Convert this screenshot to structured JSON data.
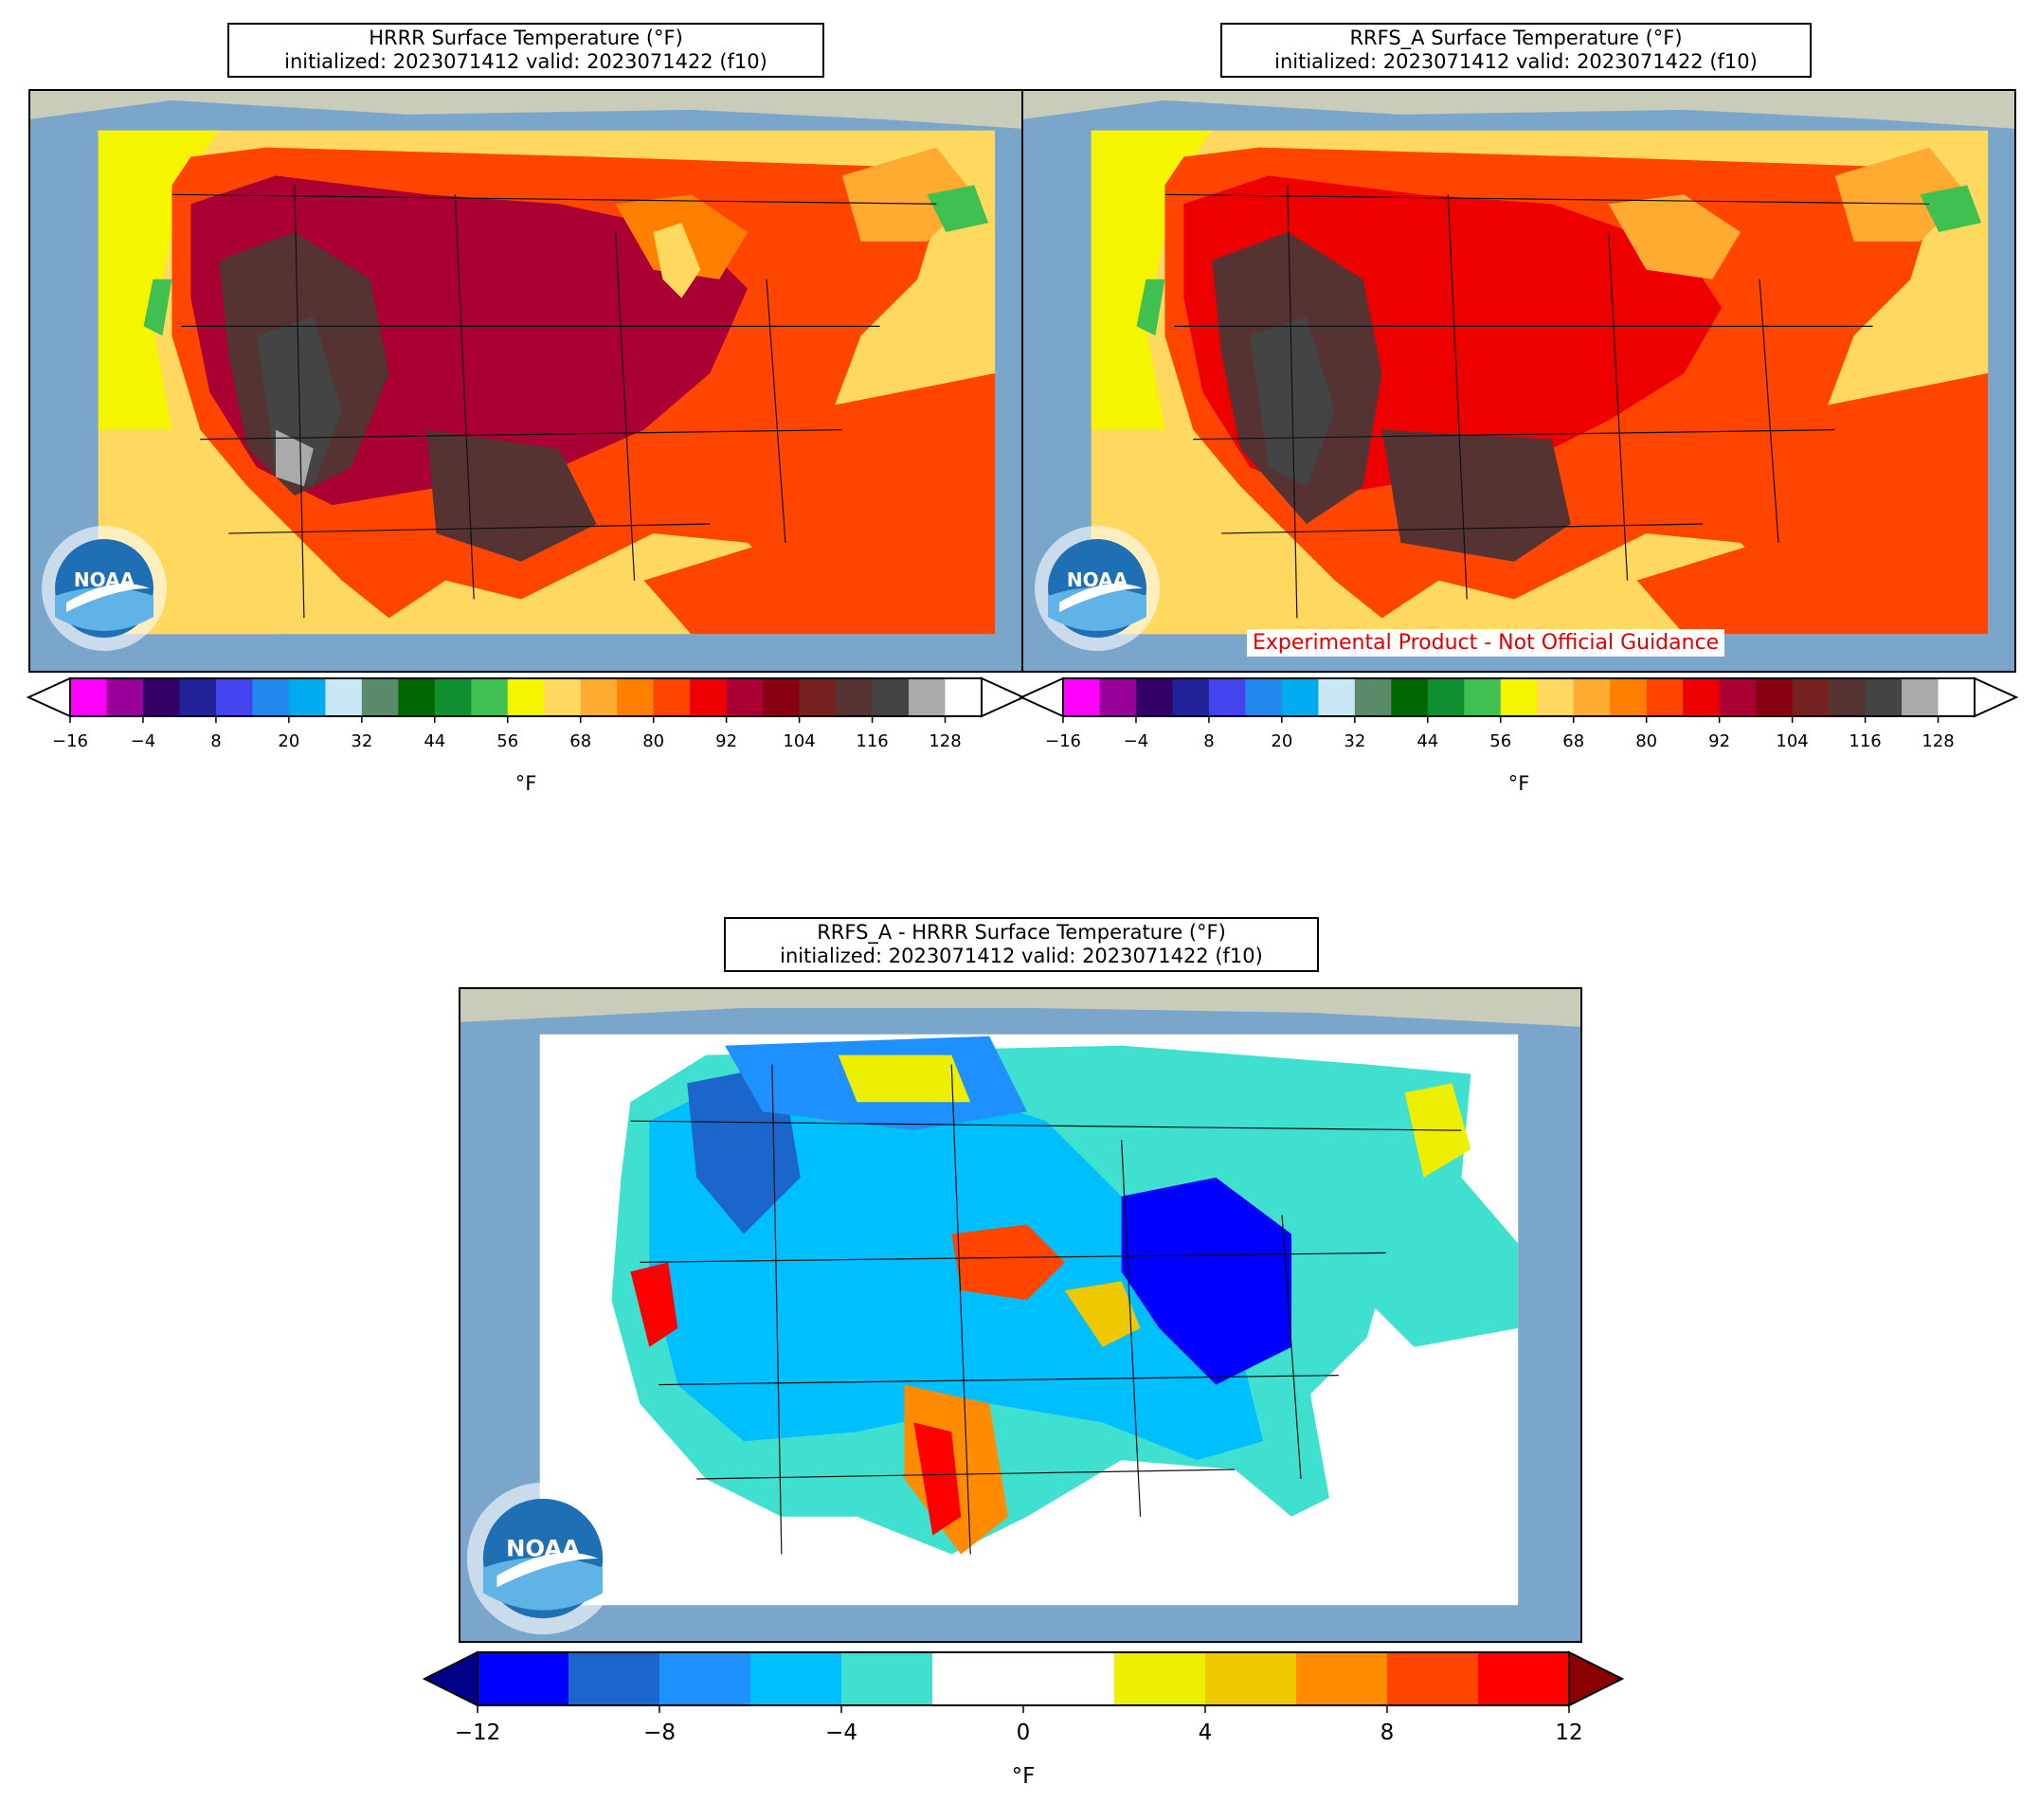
{
  "panels": [
    {
      "title_line1": "HRRR Surface Temperature (°F)",
      "title_line2": "initialized: 2023071412 valid: 2023071422 (f10)"
    },
    {
      "title_line1": "RRFS_A Surface Temperature (°F)",
      "title_line2": "initialized: 2023071412 valid: 2023071422 (f10)",
      "disclaimer": "Experimental Product - Not Official Guidance"
    },
    {
      "title_line1": "RRFS_A - HRRR Surface Temperature (°F)",
      "title_line2": "initialized: 2023071412 valid: 2023071422 (f10)"
    }
  ],
  "temp_colorbar": {
    "unit": "°F",
    "ticks": [
      "−16",
      "−4",
      "8",
      "20",
      "32",
      "44",
      "56",
      "68",
      "80",
      "92",
      "104",
      "116",
      "128"
    ],
    "colors": [
      "#ff00ff",
      "#990099",
      "#330066",
      "#222299",
      "#4444ee",
      "#2288ee",
      "#00aaee",
      "#c8e6f6",
      "#5a8a6a",
      "#006600",
      "#109030",
      "#40c050",
      "#f5f500",
      "#ffd860",
      "#ffaa30",
      "#ff7f00",
      "#ff4500",
      "#ee0000",
      "#aa0033",
      "#880011",
      "#772222",
      "#553333",
      "#444444",
      "#aaaaaa"
    ]
  },
  "diff_colorbar": {
    "unit": "°F",
    "ticks": [
      "−12",
      "−8",
      "−4",
      "0",
      "4",
      "8",
      "12"
    ],
    "colors": [
      "#0000ff",
      "#1a66cc",
      "#1e90ff",
      "#00bfff",
      "#40e0d0",
      "#ffffff",
      "#ffffff",
      "#eeee00",
      "#eec900",
      "#ff8c00",
      "#ff4500",
      "#ff0000"
    ],
    "under_color": "#00008b",
    "over_color": "#8b0000"
  },
  "logo_text": "NOAA"
}
